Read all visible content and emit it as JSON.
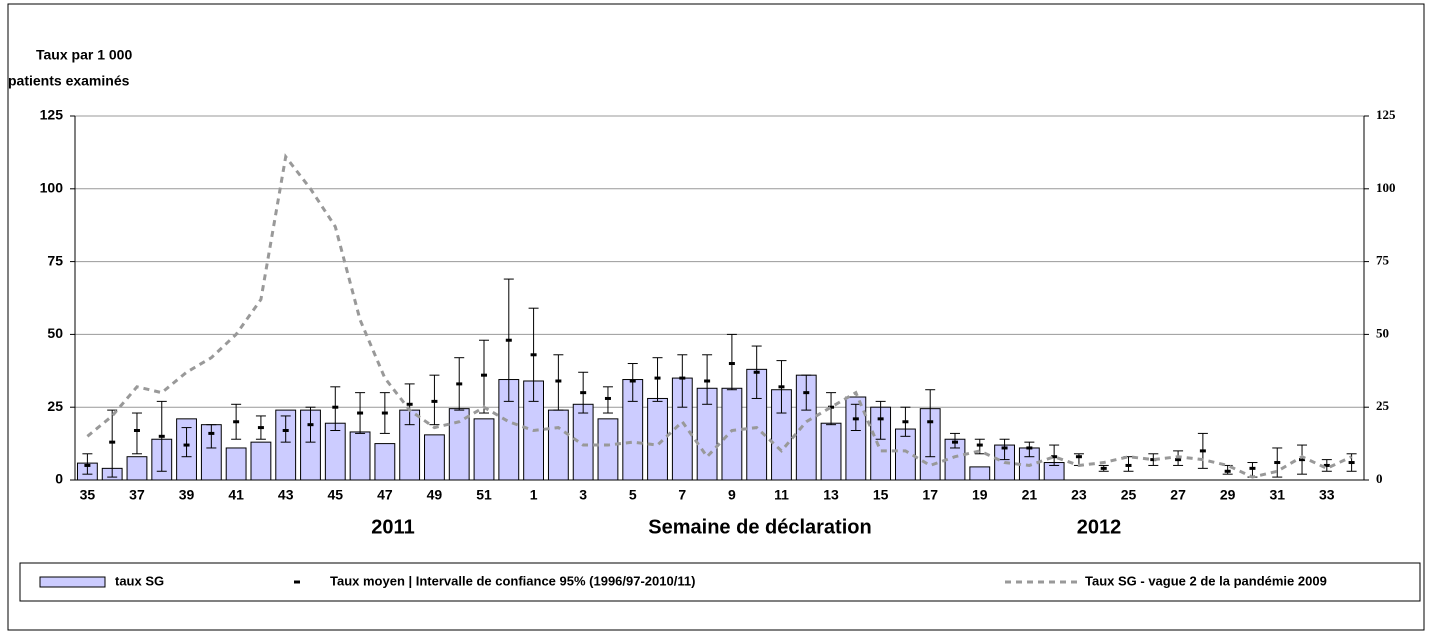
{
  "chart_data": {
    "type": "bar",
    "ylabel": [
      "Taux par 1 000",
      "patients examinés"
    ],
    "xlabel": "Semaine de déclaration",
    "annotations": [
      "2011",
      "2012"
    ],
    "categories": [
      "35",
      null,
      "37",
      null,
      "39",
      null,
      "41",
      null,
      "43",
      null,
      "45",
      null,
      "47",
      null,
      "49",
      null,
      "51",
      null,
      "1",
      null,
      "3",
      null,
      "5",
      null,
      "7",
      null,
      "9",
      null,
      "11",
      null,
      "13",
      null,
      "15",
      null,
      "17",
      null,
      "19",
      null,
      "21",
      null,
      "23",
      null,
      "25",
      null,
      "27",
      null,
      "29",
      null,
      "31",
      null,
      "33",
      null
    ],
    "ylim": [
      0,
      125
    ],
    "yticks": [
      0,
      25,
      50,
      75,
      100,
      125
    ],
    "y2lim": [
      0,
      125
    ],
    "y2ticks": [
      0,
      25,
      50,
      75,
      100,
      125
    ],
    "grid": true,
    "series": [
      {
        "name": "taux SG",
        "type": "bar",
        "color": "#ccccff",
        "values": [
          5.8,
          4,
          8,
          14,
          21,
          19,
          11,
          13,
          24,
          24,
          19.5,
          16.5,
          12.5,
          24,
          15.5,
          24.5,
          21,
          34.5,
          34,
          24,
          26,
          21,
          34.5,
          28,
          35,
          31.5,
          31.5,
          38,
          31,
          36,
          19.5,
          28.5,
          25,
          17.5,
          24.5,
          14,
          4.5,
          12,
          11,
          6,
          null,
          null,
          null,
          null,
          null,
          null,
          null,
          null,
          null,
          null,
          null,
          null
        ]
      },
      {
        "name": "Taux moyen | Intervalle de confiance 95% (1996/97-2010/11)",
        "type": "errorbar",
        "color": "#000000",
        "values": [
          5,
          13,
          17,
          15,
          12,
          16,
          20,
          18,
          17,
          19,
          25,
          23,
          23,
          26,
          27,
          33,
          36,
          48,
          43,
          34,
          30,
          28,
          34,
          35,
          35,
          34,
          40,
          37,
          32,
          30,
          25,
          21,
          21,
          20,
          20,
          13,
          12,
          11,
          11,
          8,
          8,
          4,
          5,
          7,
          7,
          10,
          3,
          4,
          6,
          7,
          5,
          6
        ],
        "low": [
          2,
          1,
          9,
          3,
          8,
          11,
          14,
          14,
          13,
          13,
          17,
          16,
          16,
          19,
          19,
          24,
          23,
          27,
          27,
          24,
          23,
          23,
          27,
          27,
          25,
          26,
          31,
          28,
          23,
          24,
          19,
          17,
          14,
          15,
          8,
          11,
          9,
          7,
          8,
          5,
          5,
          3,
          3,
          5,
          5,
          4,
          2,
          1,
          1,
          2,
          3,
          3
        ],
        "high": [
          9,
          24,
          23,
          27,
          18,
          19,
          26,
          22,
          22,
          25,
          32,
          30,
          30,
          33,
          36,
          42,
          48,
          69,
          59,
          43,
          37,
          32,
          40,
          42,
          43,
          43,
          50,
          46,
          41,
          36,
          30,
          26,
          27,
          25,
          31,
          16,
          14,
          14,
          13,
          12,
          9,
          5,
          8,
          9,
          10,
          16,
          5,
          6,
          11,
          12,
          7,
          9
        ]
      },
      {
        "name": "Taux SG - vague 2 de la pandémie 2009",
        "type": "line",
        "color": "#999999",
        "values": [
          15,
          22,
          32,
          30,
          37,
          42,
          50,
          62,
          111,
          100,
          87,
          55,
          35,
          24,
          18,
          20,
          25,
          20,
          17,
          18,
          12,
          12,
          13,
          12,
          20,
          8,
          17,
          18,
          10,
          20,
          25,
          30,
          10,
          10,
          5,
          8,
          10,
          6,
          5,
          8,
          5,
          6,
          8,
          7,
          8,
          7,
          5,
          1,
          3,
          8,
          4,
          8
        ]
      }
    ]
  }
}
